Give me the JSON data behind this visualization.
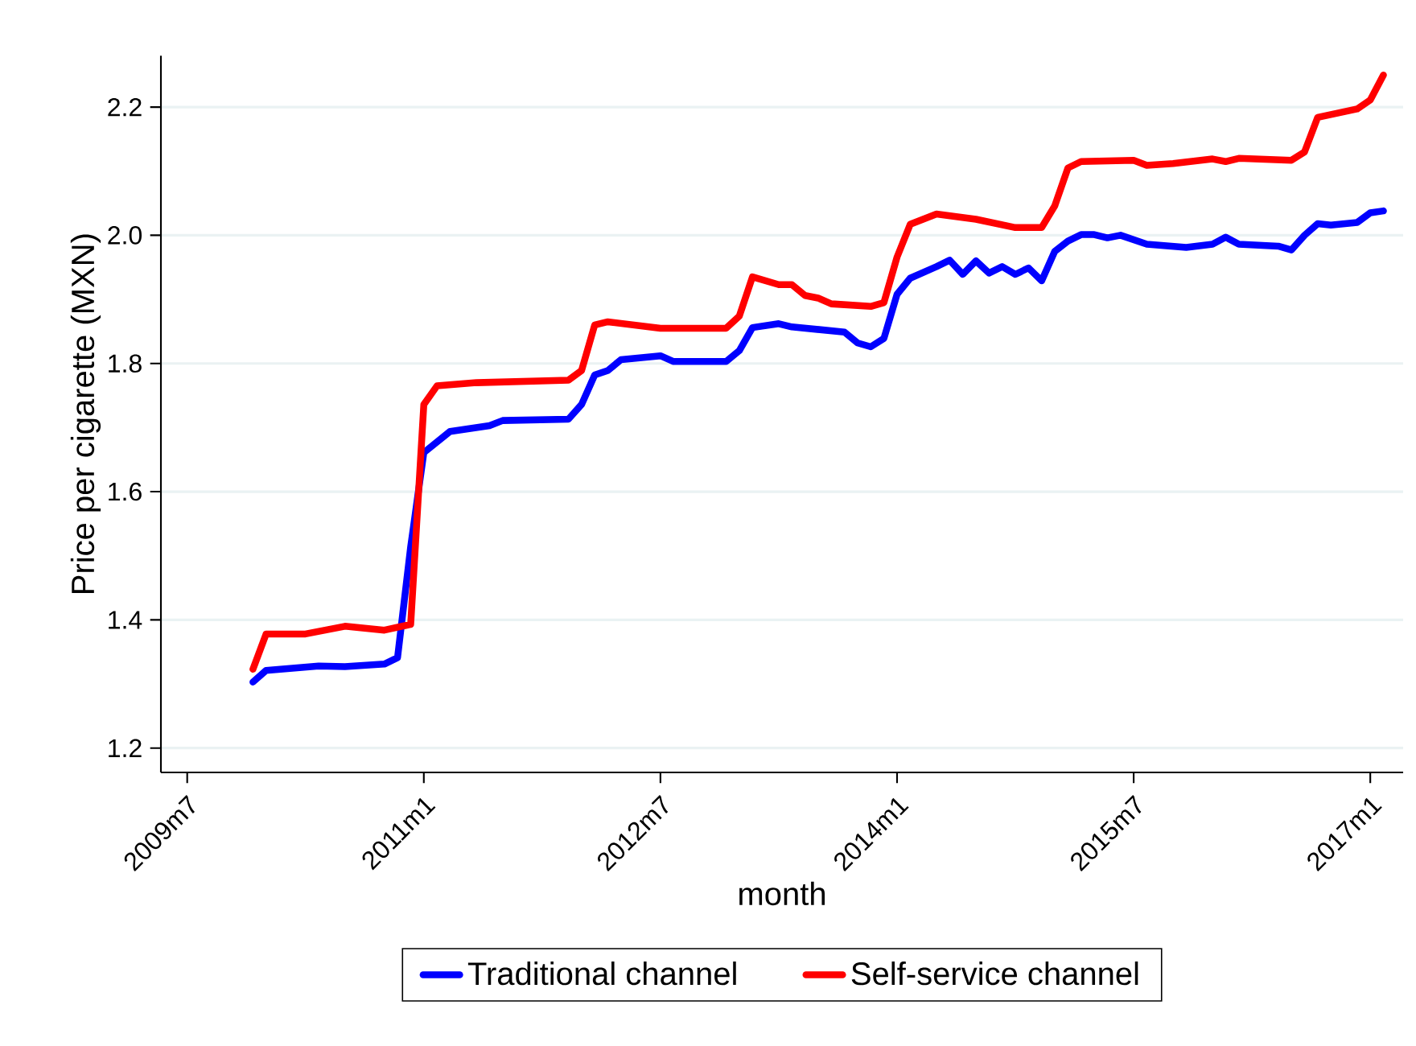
{
  "chart_data": {
    "type": "line",
    "xlabel": "month",
    "ylabel": "Price per cigarette (MXN)",
    "xlim": [
      "2009-05",
      "2017-03-16"
    ],
    "ylim": [
      1.162,
      2.28
    ],
    "xticks": [
      {
        "value": "2009-07",
        "label": "2009m7"
      },
      {
        "value": "2011-01",
        "label": "2011m1"
      },
      {
        "value": "2012-07",
        "label": "2012m7"
      },
      {
        "value": "2014-01",
        "label": "2014m1"
      },
      {
        "value": "2015-07",
        "label": "2015m7"
      },
      {
        "value": "2017-01",
        "label": "2017m1"
      }
    ],
    "yticks": [
      1.2,
      1.4,
      1.6,
      1.8,
      {
        "value": 2,
        "label": "2.0"
      },
      2.2
    ],
    "grid": "y",
    "legend": "bottom",
    "series": [
      {
        "name": "Traditional channel",
        "color": "#0000ff",
        "x": [
          "2009-12",
          "2010-01",
          "2010-05",
          "2010-07",
          "2010-10",
          "2010-11",
          "2010-12",
          "2011-01",
          "2011-03",
          "2011-06",
          "2011-07",
          "2011-12",
          "2012-01",
          "2012-02",
          "2012-03",
          "2012-04",
          "2012-07",
          "2012-08",
          "2012-12",
          "2013-01",
          "2013-02",
          "2013-04",
          "2013-05",
          "2013-07",
          "2013-09",
          "2013-10",
          "2013-11",
          "2013-12",
          "2014-01",
          "2014-02",
          "2014-04",
          "2014-05",
          "2014-06",
          "2014-07",
          "2014-08",
          "2014-09",
          "2014-10",
          "2014-11",
          "2014-12",
          "2015-01",
          "2015-02",
          "2015-03",
          "2015-04",
          "2015-05",
          "2015-06",
          "2015-08",
          "2015-11",
          "2016-01",
          "2016-02",
          "2016-03",
          "2016-06",
          "2016-07",
          "2016-08",
          "2016-09",
          "2016-10",
          "2016-12",
          "2017-01",
          "2017-02"
        ],
        "values": [
          1.303,
          1.321,
          1.328,
          1.327,
          1.331,
          1.341,
          1.514,
          1.661,
          1.694,
          1.703,
          1.711,
          1.713,
          1.736,
          1.782,
          1.789,
          1.806,
          1.812,
          1.803,
          1.803,
          1.82,
          1.856,
          1.862,
          1.857,
          1.853,
          1.849,
          1.832,
          1.826,
          1.839,
          1.908,
          1.933,
          1.951,
          1.961,
          1.939,
          1.96,
          1.941,
          1.951,
          1.939,
          1.949,
          1.929,
          1.975,
          1.991,
          2.001,
          2.001,
          1.996,
          2.0,
          1.986,
          1.981,
          1.986,
          1.997,
          1.986,
          1.983,
          1.977,
          2.0,
          2.018,
          2.016,
          2.02,
          2.035,
          2.038
        ]
      },
      {
        "name": "Self-service channel",
        "color": "#ff0000",
        "x": [
          "2009-12",
          "2010-01",
          "2010-04",
          "2010-07",
          "2010-10",
          "2010-12",
          "2011-01",
          "2011-02",
          "2011-05",
          "2011-12",
          "2012-01",
          "2012-02",
          "2012-03",
          "2012-07",
          "2012-12",
          "2013-01",
          "2013-02",
          "2013-04",
          "2013-05",
          "2013-06",
          "2013-07",
          "2013-08",
          "2013-11",
          "2013-12",
          "2014-01",
          "2014-02",
          "2014-04",
          "2014-07",
          "2014-10",
          "2014-12",
          "2015-01",
          "2015-02",
          "2015-03",
          "2015-07",
          "2015-08",
          "2015-10",
          "2016-01",
          "2016-02",
          "2016-03",
          "2016-07",
          "2016-08",
          "2016-09",
          "2016-12",
          "2017-01",
          "2017-02"
        ],
        "values": [
          1.323,
          1.378,
          1.378,
          1.39,
          1.384,
          1.393,
          1.736,
          1.765,
          1.77,
          1.774,
          1.789,
          1.86,
          1.865,
          1.855,
          1.855,
          1.874,
          1.935,
          1.923,
          1.923,
          1.906,
          1.902,
          1.893,
          1.889,
          1.895,
          1.966,
          2.017,
          2.033,
          2.025,
          2.012,
          2.012,
          2.046,
          2.105,
          2.115,
          2.117,
          2.109,
          2.112,
          2.119,
          2.115,
          2.12,
          2.117,
          2.13,
          2.184,
          2.197,
          2.211,
          2.25
        ]
      }
    ]
  }
}
